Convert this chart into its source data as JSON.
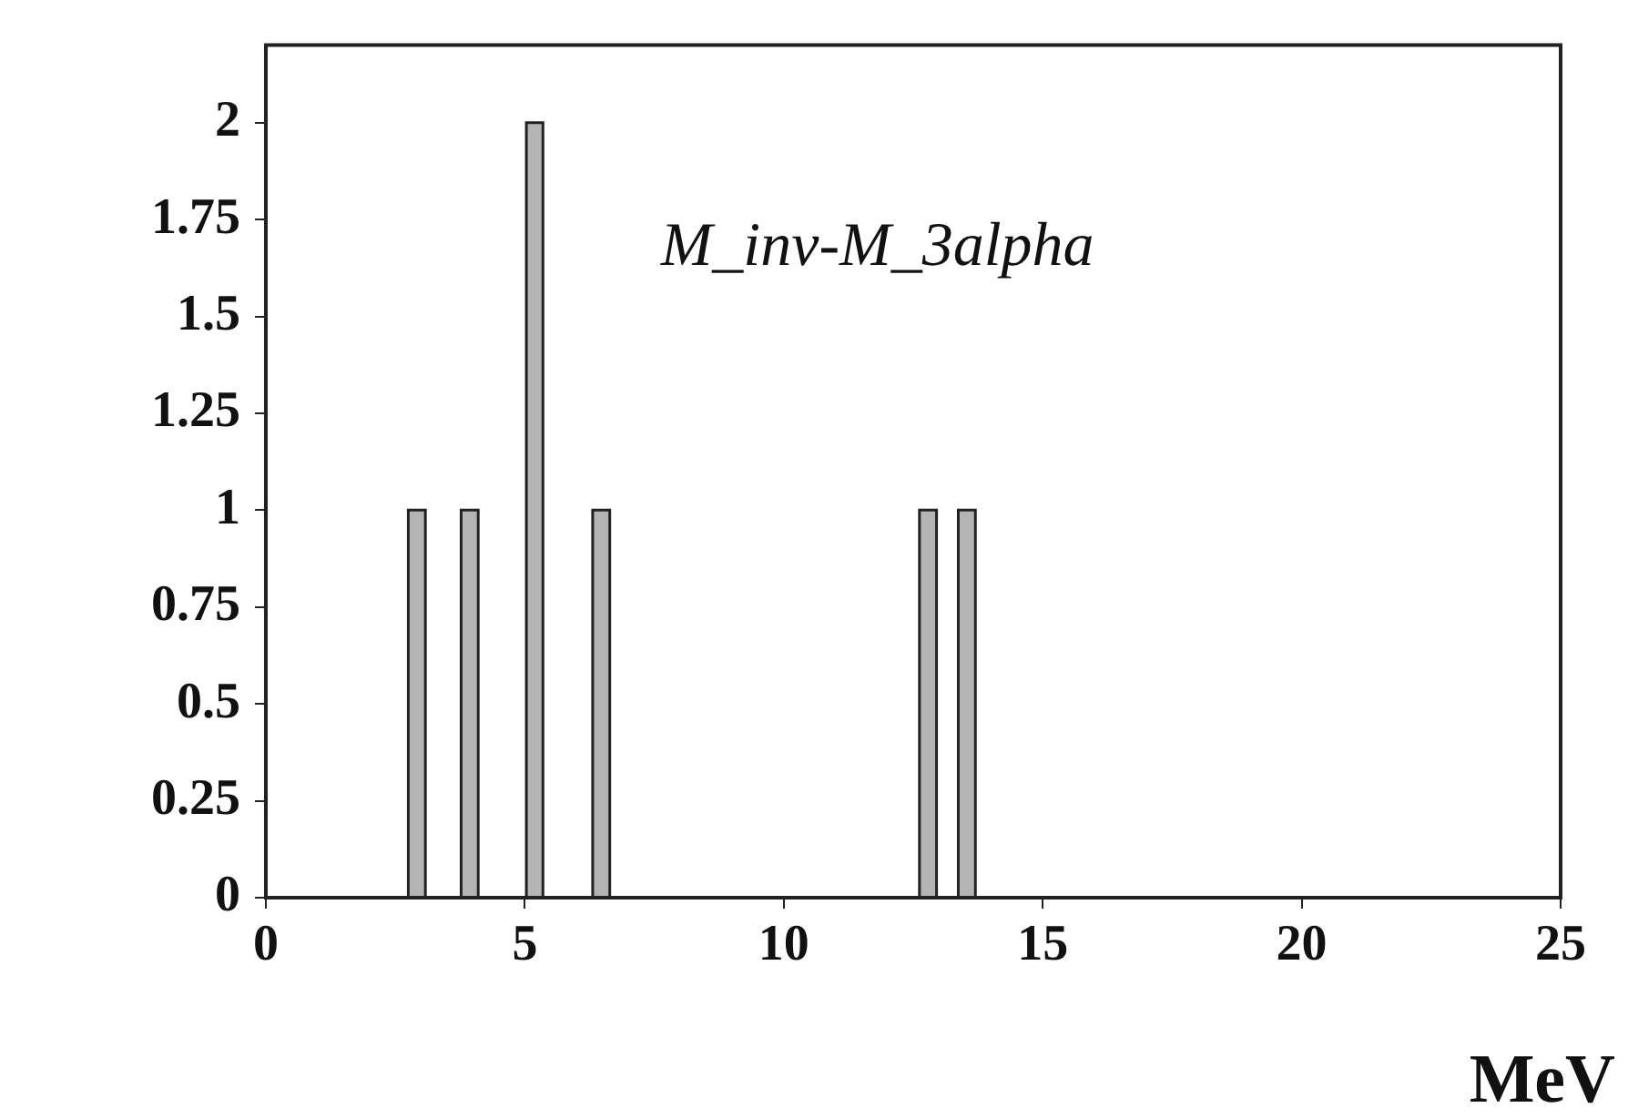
{
  "chart_data": {
    "type": "histogram",
    "bins": [
      2.75,
      3.08,
      3.77,
      4.1,
      5.03,
      5.35,
      6.31,
      6.64,
      12.62,
      12.95,
      13.37,
      13.7
    ],
    "values": [
      1,
      0,
      1,
      0,
      2,
      0,
      1,
      0,
      1,
      0,
      1
    ],
    "color": "#b4b4b4",
    "xlabel": "MeV",
    "annotations": [
      "M_inv-M_3alpha"
    ],
    "xlim": [
      0,
      25
    ],
    "xticks": [
      0,
      5,
      10,
      15,
      20,
      25
    ],
    "ylim": [
      0,
      2.2
    ],
    "yticks": [
      0,
      0.25,
      0.5,
      0.75,
      1,
      1.25,
      1.5,
      1.75,
      2
    ],
    "legend": false,
    "grid": false
  }
}
